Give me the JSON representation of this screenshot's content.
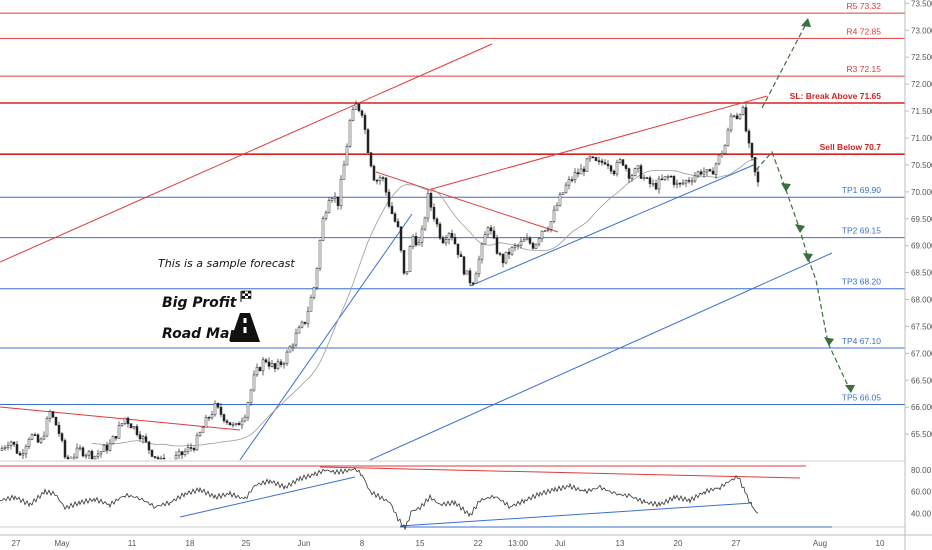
{
  "chart_data": {
    "type": "candlestick",
    "title": "",
    "price_axis": {
      "min": 65.0,
      "max": 73.5,
      "ticks": [
        "73.500",
        "73.000",
        "72.500",
        "72.000",
        "71.500",
        "71.000",
        "70.500",
        "70.000",
        "69.500",
        "69.000",
        "68.500",
        "68.000",
        "67.500",
        "67.000",
        "66.500",
        "66.000",
        "65.500"
      ]
    },
    "time_axis": {
      "labels": [
        "27",
        "May",
        "11",
        "18",
        "25",
        "Jun",
        "8",
        "15",
        "22",
        "13:00",
        "Jul",
        "13",
        "20",
        "27",
        "Aug",
        "10"
      ]
    },
    "levels": [
      {
        "label": "R5 73.32",
        "value": 73.32,
        "color": "#e03a3a",
        "bold": false
      },
      {
        "label": "R4 72.85",
        "value": 72.85,
        "color": "#e03a3a",
        "bold": false
      },
      {
        "label": "R3 72.15",
        "value": 72.15,
        "color": "#e03a3a",
        "bold": false
      },
      {
        "label": "SL: Break Above 71.65",
        "value": 71.65,
        "color": "#d62020",
        "bold": true
      },
      {
        "label": "Sell Below 70.7",
        "value": 70.7,
        "color": "#d62020",
        "bold": true
      },
      {
        "label": "TP1 69.90",
        "value": 69.9,
        "color": "#3a6fd0",
        "bold": false
      },
      {
        "label": "TP2 69.15",
        "value": 69.15,
        "color": "#3a6fd0",
        "bold": false
      },
      {
        "label": "TP3 68.20",
        "value": 68.2,
        "color": "#3a6fd0",
        "bold": false
      },
      {
        "label": "TP4 67.10",
        "value": 67.1,
        "color": "#3a6fd0",
        "bold": false
      },
      {
        "label": "TP5 66.05",
        "value": 66.05,
        "color": "#3a6fd0",
        "bold": false
      }
    ],
    "price_path": [
      [
        0,
        65.2
      ],
      [
        10,
        65.4
      ],
      [
        20,
        65.1
      ],
      [
        30,
        65.5
      ],
      [
        40,
        65.3
      ],
      [
        50,
        65.9
      ],
      [
        58,
        65.6
      ],
      [
        66,
        65.0
      ],
      [
        80,
        65.2
      ],
      [
        95,
        65.1
      ],
      [
        110,
        65.3
      ],
      [
        125,
        65.8
      ],
      [
        140,
        65.5
      ],
      [
        150,
        65.2
      ],
      [
        165,
        64.9
      ],
      [
        180,
        65.1
      ],
      [
        195,
        65.3
      ],
      [
        205,
        65.7
      ],
      [
        215,
        66.0
      ],
      [
        225,
        65.8
      ],
      [
        235,
        65.6
      ],
      [
        245,
        65.9
      ],
      [
        255,
        66.6
      ],
      [
        265,
        66.9
      ],
      [
        275,
        66.7
      ],
      [
        285,
        66.9
      ],
      [
        295,
        67.3
      ],
      [
        305,
        67.6
      ],
      [
        315,
        68.3
      ],
      [
        322,
        69.4
      ],
      [
        330,
        70.0
      ],
      [
        338,
        69.8
      ],
      [
        345,
        70.6
      ],
      [
        350,
        71.3
      ],
      [
        356,
        71.6
      ],
      [
        362,
        71.5
      ],
      [
        368,
        70.8
      ],
      [
        375,
        70.2
      ],
      [
        382,
        70.3
      ],
      [
        390,
        69.7
      ],
      [
        398,
        69.3
      ],
      [
        405,
        68.3
      ],
      [
        412,
        69.2
      ],
      [
        420,
        69.0
      ],
      [
        428,
        69.9
      ],
      [
        435,
        69.5
      ],
      [
        442,
        69.1
      ],
      [
        450,
        69.3
      ],
      [
        458,
        68.9
      ],
      [
        465,
        68.5
      ],
      [
        472,
        68.3
      ],
      [
        480,
        68.8
      ],
      [
        488,
        69.4
      ],
      [
        495,
        69.0
      ],
      [
        502,
        68.7
      ],
      [
        510,
        68.9
      ],
      [
        518,
        69.0
      ],
      [
        526,
        69.1
      ],
      [
        534,
        69.0
      ],
      [
        542,
        69.3
      ],
      [
        550,
        69.4
      ],
      [
        558,
        69.8
      ],
      [
        566,
        70.1
      ],
      [
        574,
        70.3
      ],
      [
        582,
        70.4
      ],
      [
        590,
        70.6
      ],
      [
        598,
        70.5
      ],
      [
        606,
        70.6
      ],
      [
        614,
        70.4
      ],
      [
        622,
        70.6
      ],
      [
        630,
        70.3
      ],
      [
        638,
        70.4
      ],
      [
        646,
        70.2
      ],
      [
        654,
        70.1
      ],
      [
        662,
        70.2
      ],
      [
        670,
        70.3
      ],
      [
        678,
        70.1
      ],
      [
        686,
        70.2
      ],
      [
        694,
        70.3
      ],
      [
        702,
        70.4
      ],
      [
        710,
        70.3
      ],
      [
        718,
        70.6
      ],
      [
        726,
        70.9
      ],
      [
        732,
        71.5
      ],
      [
        737,
        71.4
      ],
      [
        742,
        71.6
      ],
      [
        748,
        70.9
      ],
      [
        754,
        70.4
      ],
      [
        758,
        70.15
      ]
    ],
    "rsi": {
      "ticks": [
        "80.00",
        "60.00",
        "40.00"
      ],
      "levels": [
        80,
        60,
        40
      ],
      "path": [
        [
          0,
          52
        ],
        [
          15,
          55
        ],
        [
          30,
          48
        ],
        [
          45,
          60
        ],
        [
          55,
          58
        ],
        [
          65,
          45
        ],
        [
          80,
          50
        ],
        [
          95,
          53
        ],
        [
          110,
          48
        ],
        [
          125,
          57
        ],
        [
          140,
          54
        ],
        [
          155,
          46
        ],
        [
          170,
          50
        ],
        [
          185,
          58
        ],
        [
          200,
          62
        ],
        [
          215,
          55
        ],
        [
          230,
          58
        ],
        [
          245,
          53
        ],
        [
          255,
          66
        ],
        [
          270,
          70
        ],
        [
          285,
          64
        ],
        [
          300,
          72
        ],
        [
          315,
          76
        ],
        [
          325,
          80
        ],
        [
          335,
          78
        ],
        [
          345,
          79
        ],
        [
          355,
          81
        ],
        [
          362,
          76
        ],
        [
          370,
          60
        ],
        [
          380,
          55
        ],
        [
          390,
          50
        ],
        [
          398,
          35
        ],
        [
          405,
          26
        ],
        [
          412,
          42
        ],
        [
          420,
          45
        ],
        [
          430,
          55
        ],
        [
          440,
          48
        ],
        [
          455,
          50
        ],
        [
          470,
          38
        ],
        [
          480,
          52
        ],
        [
          495,
          56
        ],
        [
          510,
          46
        ],
        [
          525,
          52
        ],
        [
          540,
          58
        ],
        [
          555,
          62
        ],
        [
          570,
          65
        ],
        [
          585,
          60
        ],
        [
          600,
          64
        ],
        [
          615,
          58
        ],
        [
          630,
          56
        ],
        [
          645,
          50
        ],
        [
          660,
          48
        ],
        [
          675,
          55
        ],
        [
          690,
          52
        ],
        [
          705,
          60
        ],
        [
          720,
          64
        ],
        [
          730,
          70
        ],
        [
          738,
          74
        ],
        [
          745,
          60
        ],
        [
          752,
          46
        ],
        [
          758,
          40
        ]
      ]
    },
    "annotations": {
      "note": "This is a sample forecast",
      "brand_line1": "Big Profit",
      "brand_line2": "Road Map"
    }
  }
}
